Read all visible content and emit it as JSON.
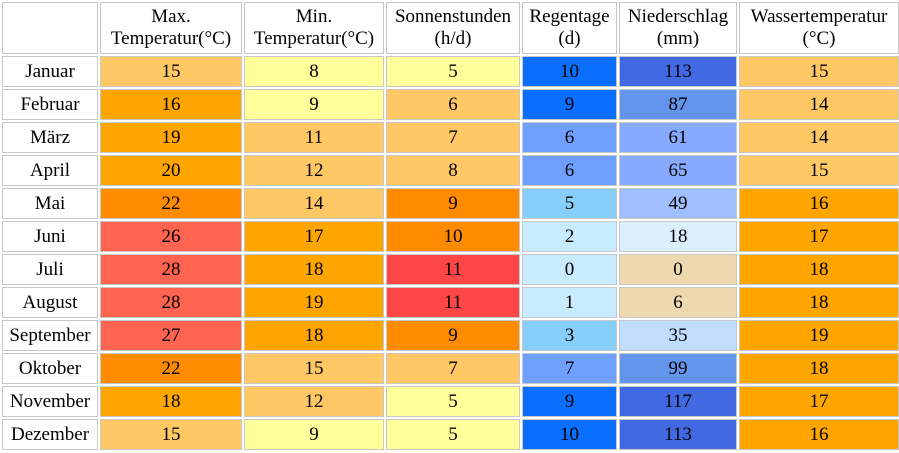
{
  "headers": [
    {
      "line1": "Max.",
      "line2": "Temperatur(°C)"
    },
    {
      "line1": "Min.",
      "line2": "Temperatur(°C)"
    },
    {
      "line1": "Sonnenstunden",
      "line2": "(h/d)"
    },
    {
      "line1": "Regentage",
      "line2": "(d)"
    },
    {
      "line1": "Niederschlag",
      "line2": "(mm)"
    },
    {
      "line1": "Wassertemperatur",
      "line2": "(°C)"
    }
  ],
  "rows": [
    {
      "month": "Januar",
      "cells": [
        {
          "v": "15",
          "c": "#ffc864"
        },
        {
          "v": "8",
          "c": "#ffff9b"
        },
        {
          "v": "5",
          "c": "#ffff9b"
        },
        {
          "v": "10",
          "c": "#0a6eff"
        },
        {
          "v": "113",
          "c": "#4169e1"
        },
        {
          "v": "15",
          "c": "#ffc864"
        }
      ]
    },
    {
      "month": "Februar",
      "cells": [
        {
          "v": "16",
          "c": "#ffa500"
        },
        {
          "v": "9",
          "c": "#ffff9b"
        },
        {
          "v": "6",
          "c": "#ffc864"
        },
        {
          "v": "9",
          "c": "#0a6eff"
        },
        {
          "v": "87",
          "c": "#6495ed"
        },
        {
          "v": "14",
          "c": "#ffc864"
        }
      ]
    },
    {
      "month": "März",
      "cells": [
        {
          "v": "19",
          "c": "#ffa500"
        },
        {
          "v": "11",
          "c": "#ffc864"
        },
        {
          "v": "7",
          "c": "#ffc864"
        },
        {
          "v": "6",
          "c": "#6fa0ff"
        },
        {
          "v": "61",
          "c": "#87aaff"
        },
        {
          "v": "14",
          "c": "#ffc864"
        }
      ]
    },
    {
      "month": "April",
      "cells": [
        {
          "v": "20",
          "c": "#ffa500"
        },
        {
          "v": "12",
          "c": "#ffc864"
        },
        {
          "v": "8",
          "c": "#ffc864"
        },
        {
          "v": "6",
          "c": "#6fa0ff"
        },
        {
          "v": "65",
          "c": "#87aaff"
        },
        {
          "v": "15",
          "c": "#ffc864"
        }
      ]
    },
    {
      "month": "Mai",
      "cells": [
        {
          "v": "22",
          "c": "#ff8c00"
        },
        {
          "v": "14",
          "c": "#ffc864"
        },
        {
          "v": "9",
          "c": "#ff8c00"
        },
        {
          "v": "5",
          "c": "#87cefa"
        },
        {
          "v": "49",
          "c": "#a0bfff"
        },
        {
          "v": "16",
          "c": "#ffa500"
        }
      ]
    },
    {
      "month": "Juni",
      "cells": [
        {
          "v": "26",
          "c": "#ff6450"
        },
        {
          "v": "17",
          "c": "#ffa500"
        },
        {
          "v": "10",
          "c": "#ff8c00"
        },
        {
          "v": "2",
          "c": "#c8ebff"
        },
        {
          "v": "18",
          "c": "#dcefff"
        },
        {
          "v": "17",
          "c": "#ffa500"
        }
      ]
    },
    {
      "month": "Juli",
      "cells": [
        {
          "v": "28",
          "c": "#ff6450"
        },
        {
          "v": "18",
          "c": "#ffa500"
        },
        {
          "v": "11",
          "c": "#ff4646"
        },
        {
          "v": "0",
          "c": "#c8ebff"
        },
        {
          "v": "0",
          "c": "#eed8b0"
        },
        {
          "v": "18",
          "c": "#ffa500"
        }
      ]
    },
    {
      "month": "August",
      "cells": [
        {
          "v": "28",
          "c": "#ff6450"
        },
        {
          "v": "19",
          "c": "#ffa500"
        },
        {
          "v": "11",
          "c": "#ff4646"
        },
        {
          "v": "1",
          "c": "#c8ebff"
        },
        {
          "v": "6",
          "c": "#eed8b0"
        },
        {
          "v": "18",
          "c": "#ffa500"
        }
      ]
    },
    {
      "month": "September",
      "cells": [
        {
          "v": "27",
          "c": "#ff6450"
        },
        {
          "v": "18",
          "c": "#ffa500"
        },
        {
          "v": "9",
          "c": "#ff8c00"
        },
        {
          "v": "3",
          "c": "#87cefa"
        },
        {
          "v": "35",
          "c": "#c0dcff"
        },
        {
          "v": "19",
          "c": "#ffa500"
        }
      ]
    },
    {
      "month": "Oktober",
      "cells": [
        {
          "v": "22",
          "c": "#ff8c00"
        },
        {
          "v": "15",
          "c": "#ffc864"
        },
        {
          "v": "7",
          "c": "#ffc864"
        },
        {
          "v": "7",
          "c": "#6fa0ff"
        },
        {
          "v": "99",
          "c": "#6495ed"
        },
        {
          "v": "18",
          "c": "#ffa500"
        }
      ]
    },
    {
      "month": "November",
      "cells": [
        {
          "v": "18",
          "c": "#ffa500"
        },
        {
          "v": "12",
          "c": "#ffc864"
        },
        {
          "v": "5",
          "c": "#ffff9b"
        },
        {
          "v": "9",
          "c": "#0a6eff"
        },
        {
          "v": "117",
          "c": "#4169e1"
        },
        {
          "v": "17",
          "c": "#ffa500"
        }
      ]
    },
    {
      "month": "Dezember",
      "cells": [
        {
          "v": "15",
          "c": "#ffc864"
        },
        {
          "v": "9",
          "c": "#ffff9b"
        },
        {
          "v": "5",
          "c": "#ffff9b"
        },
        {
          "v": "10",
          "c": "#0a6eff"
        },
        {
          "v": "113",
          "c": "#4169e1"
        },
        {
          "v": "16",
          "c": "#ffa500"
        }
      ]
    }
  ]
}
